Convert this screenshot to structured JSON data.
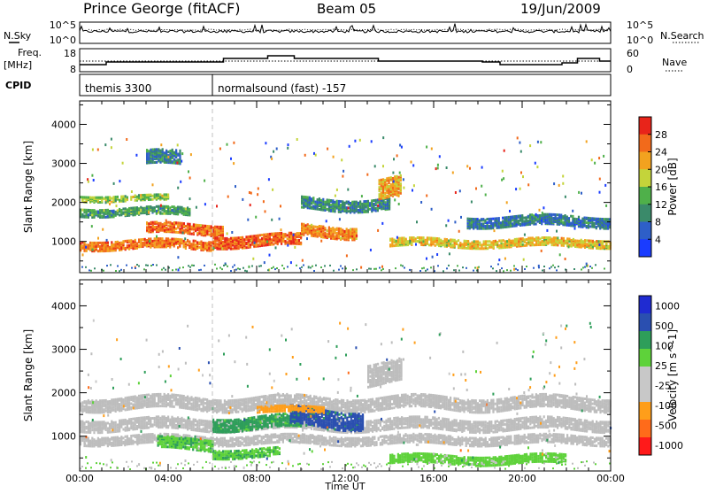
{
  "header": {
    "station": "Prince George (fitACF)",
    "beam": "Beam 05",
    "date": "19/Jun/2009"
  },
  "strip_labels": {
    "nsky": "N.Sky",
    "nsearch": "N.Search",
    "freq": "Freq.",
    "freq_unit": "[MHz]",
    "nave": "Nave",
    "cpid": "CPID"
  },
  "strip_ticks": {
    "nsky_top": "10^5",
    "nsky_bottom": "10^0",
    "nsearch_top": "10^5",
    "nsearch_bottom": "10^0",
    "freq_top": "18",
    "freq_bottom": "8",
    "nave_top": "60",
    "nave_bottom": "0"
  },
  "cpid_segments": [
    {
      "start": "00:00",
      "label": "themis 3300"
    },
    {
      "start": "06:00",
      "label": "normalsound (fast) -157"
    }
  ],
  "colors": {
    "power_scale": [
      "#1a3cff",
      "#2e5fc8",
      "#3a8a6a",
      "#4fb04a",
      "#c4d43a",
      "#f2a21f",
      "#f26a1b",
      "#e8241a"
    ],
    "velocity_scale": [
      "#ff1a1a",
      "#ff6b1a",
      "#ff9e1a",
      "#c8c8c8",
      "#c8c8c8",
      "#5ed23a",
      "#2e9e5a",
      "#2a4fb0",
      "#1f2bd1"
    ],
    "ground_scatter": "#bdbdbd"
  },
  "chart_data": [
    {
      "type": "heatmap",
      "title": "",
      "quantity": "Power",
      "xlabel": "",
      "ylabel": "Slant Range [km]",
      "x_tick_labels": [
        "00:00",
        "04:00",
        "08:00",
        "12:00",
        "16:00",
        "20:00",
        "00:00"
      ],
      "y_tick_labels": [
        "1000",
        "2000",
        "3000",
        "4000"
      ],
      "ylim": [
        200,
        4600
      ],
      "colorbar_label": "Power [dB]",
      "colorbar_ticks": [
        "4",
        "8",
        "12",
        "16",
        "20",
        "24",
        "28"
      ],
      "colorbar_range": [
        0,
        32
      ],
      "bands": [
        {
          "t_start": 0.0,
          "t_end": 6.0,
          "r_center": 950,
          "r_width": 220,
          "value": 25
        },
        {
          "t_start": 3.0,
          "t_end": 6.5,
          "r_center": 1350,
          "r_width": 250,
          "value": 26
        },
        {
          "t_start": 6.0,
          "t_end": 10.0,
          "r_center": 1050,
          "r_width": 280,
          "value": 27
        },
        {
          "t_start": 10.0,
          "t_end": 12.5,
          "r_center": 1300,
          "r_width": 300,
          "value": 24
        },
        {
          "t_start": 14.0,
          "t_end": 24.0,
          "r_center": 1000,
          "r_width": 200,
          "value": 20
        },
        {
          "t_start": 0.0,
          "t_end": 5.0,
          "r_center": 1800,
          "r_width": 200,
          "value": 12
        },
        {
          "t_start": 0.0,
          "t_end": 4.0,
          "r_center": 2150,
          "r_width": 150,
          "value": 16
        },
        {
          "t_start": 10.0,
          "t_end": 14.0,
          "r_center": 2000,
          "r_width": 300,
          "value": 10
        },
        {
          "t_start": 17.5,
          "t_end": 24.0,
          "r_center": 1550,
          "r_width": 250,
          "value": 8
        },
        {
          "t_start": 3.0,
          "t_end": 4.5,
          "r_center": 3150,
          "r_width": 350,
          "value": 9
        },
        {
          "t_start": 13.5,
          "t_end": 14.5,
          "r_center": 2400,
          "r_width": 500,
          "value": 22
        }
      ]
    },
    {
      "type": "heatmap",
      "title": "",
      "quantity": "Velocity",
      "xlabel": "Time UT",
      "ylabel": "Slant Range [km]",
      "x_tick_labels": [
        "00:00",
        "04:00",
        "08:00",
        "12:00",
        "16:00",
        "20:00",
        "00:00"
      ],
      "y_tick_labels": [
        "1000",
        "2000",
        "3000",
        "4000"
      ],
      "ylim": [
        200,
        4600
      ],
      "colorbar_label": "Velocity [m s^-1]",
      "colorbar_ticks": [
        "1000",
        "500",
        "100",
        "25",
        "-25",
        "-100",
        "-500",
        "-1000"
      ],
      "bands": [
        {
          "t_start": 0.0,
          "t_end": 24.0,
          "r_center": 1800,
          "r_width": 300,
          "value": "gs"
        },
        {
          "t_start": 0.0,
          "t_end": 24.0,
          "r_center": 1300,
          "r_width": 250,
          "value": "gs"
        },
        {
          "t_start": 0.0,
          "t_end": 24.0,
          "r_center": 950,
          "r_width": 200,
          "value": "gs"
        },
        {
          "t_start": 3.5,
          "t_end": 6.0,
          "r_center": 850,
          "r_width": 250,
          "value": 80
        },
        {
          "t_start": 6.0,
          "t_end": 10.0,
          "r_center": 1350,
          "r_width": 300,
          "value": 150
        },
        {
          "t_start": 6.0,
          "t_end": 9.0,
          "r_center": 650,
          "r_width": 200,
          "value": 80
        },
        {
          "t_start": 9.5,
          "t_end": 12.8,
          "r_center": 1450,
          "r_width": 400,
          "value": 700
        },
        {
          "t_start": 8.0,
          "t_end": 11.0,
          "r_center": 1650,
          "r_width": 150,
          "value": -300
        },
        {
          "t_start": 14.0,
          "t_end": 22.0,
          "r_center": 500,
          "r_width": 200,
          "value": 60
        },
        {
          "t_start": 13.0,
          "t_end": 14.5,
          "r_center": 2500,
          "r_width": 500,
          "value": "gs"
        }
      ]
    }
  ]
}
